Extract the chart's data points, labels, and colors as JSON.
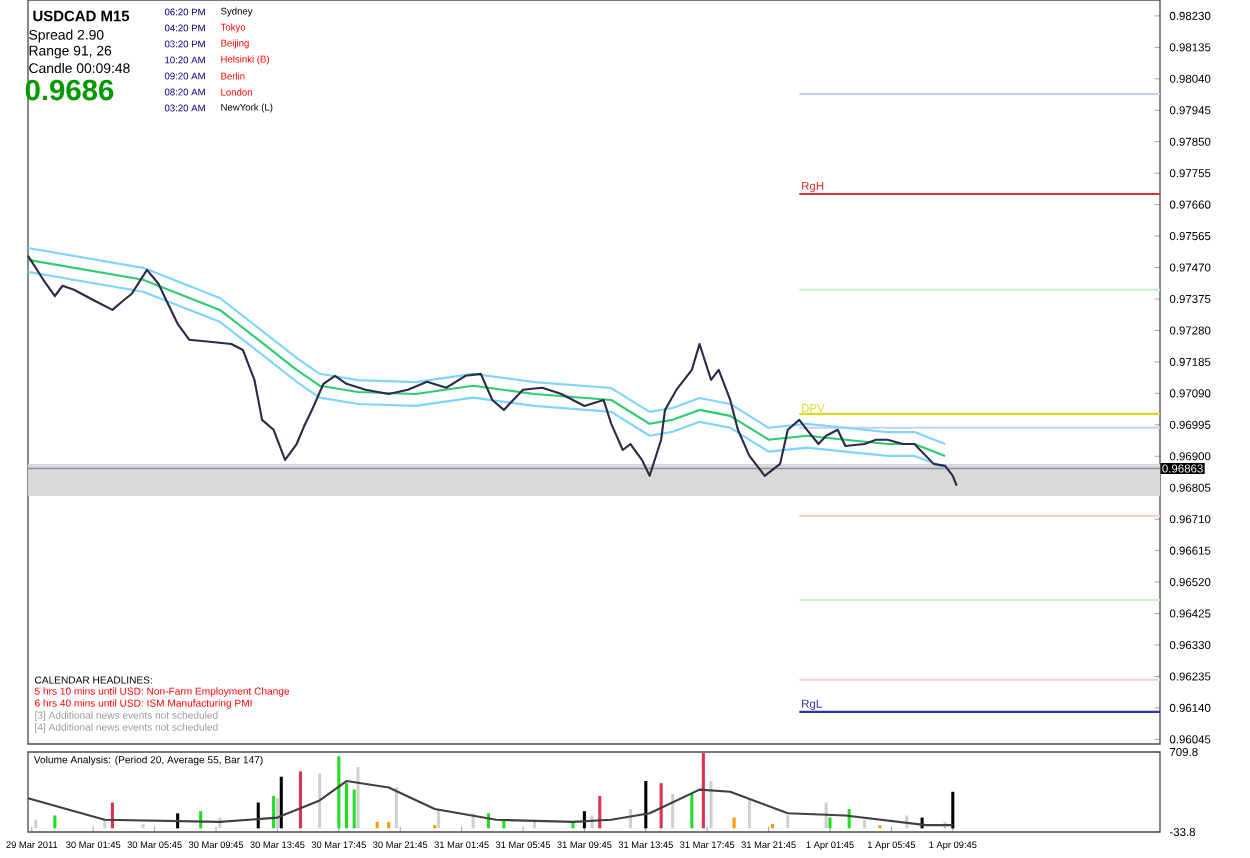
{
  "chart_data": [
    {
      "type": "line",
      "title": "USDCAD  M15",
      "xlim": [
        "2011-03-29T21:30",
        "2011-04-01T23:15"
      ],
      "ylim": [
        0.96031,
        0.98278
      ],
      "tick_labels": "y",
      "yticks": [
        {
          "value": 0.9823,
          "label": "0.98230"
        },
        0.98135,
        {
          "value": 0.9804,
          "label": "0.98040"
        },
        0.97945,
        {
          "value": 0.9785,
          "label": "0.97850"
        },
        0.97755,
        {
          "value": 0.9766,
          "label": "0.97660"
        },
        0.97565,
        {
          "value": 0.9747,
          "label": "0.97470"
        },
        0.97375,
        {
          "value": 0.9728,
          "label": "0.97280"
        },
        0.97185,
        {
          "value": 0.9709,
          "label": "0.97090"
        },
        0.96995,
        {
          "value": 0.969,
          "label": "0.96900"
        },
        0.96805,
        {
          "value": 0.9671,
          "label": "0.96710"
        },
        0.96615,
        {
          "value": 0.9652,
          "label": "0.96520"
        },
        0.96425,
        {
          "value": 0.9633,
          "label": "0.96330"
        },
        0.96235,
        {
          "value": 0.9614,
          "label": "0.96140"
        },
        0.96045
      ],
      "bands": [
        {
          "axis": "y",
          "from": 0.9678,
          "to": 0.96877,
          "color": "#d9d9d9"
        }
      ],
      "ref_lines": [
        {
          "axis": "y",
          "value": 0.96863,
          "label": "0.96863",
          "color": "#9090a0"
        }
      ],
      "series": [
        {
          "color": "#c8d0f0",
          "x": [
            "2011-03-31T23:45",
            "2011-04-01T23:15"
          ],
          "values": [
            0.97994,
            0.97994
          ]
        },
        {
          "color": "#c8f0c8",
          "x": [
            "2011-03-31T23:45",
            "2011-04-01T23:15"
          ],
          "values": [
            0.97403,
            0.97403
          ]
        },
        {
          "color": "#c8d0f0",
          "x": [
            "2011-03-31T23:45",
            "2011-04-01T23:15"
          ],
          "values": [
            0.96986,
            0.96986
          ]
        },
        {
          "color": "#f4d0d0",
          "x": [
            "2011-03-31T23:45",
            "2011-04-01T23:15"
          ],
          "values": [
            0.9672,
            0.9672
          ]
        },
        {
          "color": "#c8f0c8",
          "x": [
            "2011-03-31T23:45",
            "2011-04-01T23:15"
          ],
          "values": [
            0.96466,
            0.96466
          ]
        },
        {
          "color": "#f4d0d0",
          "x": [
            "2011-03-31T23:45",
            "2011-04-01T23:15"
          ],
          "values": [
            0.96225,
            0.96225
          ]
        },
        {
          "name": "RgH",
          "color": "#e03030",
          "x": [
            "2011-03-31T23:45",
            "2011-04-01T23:15"
          ],
          "values": [
            0.97692,
            0.97692
          ]
        },
        {
          "name": "DPV",
          "color": "#e0d820",
          "x": [
            "2011-03-31T23:45",
            "2011-04-01T23:15"
          ],
          "values": [
            0.97028,
            0.97028
          ]
        },
        {
          "name": "RgL",
          "color": "#3030b0",
          "x": [
            "2011-03-31T23:45",
            "2011-04-01T23:15"
          ],
          "values": [
            0.96128,
            0.96128
          ]
        },
        {
          "color": "#7fd4ff",
          "x": [
            "2011-03-29T21:30",
            "2011-03-30T05:00",
            "2011-03-30T10:00",
            "2011-03-30T12:30",
            "2011-03-30T15:00",
            "2011-03-30T16:30",
            "2011-03-30T19:00",
            "2011-03-30T22:45",
            "2011-03-31T02:30",
            "2011-03-31T06:30",
            "2011-03-31T11:30",
            "2011-03-31T14:00",
            "2011-03-31T15:30",
            "2011-03-31T17:15",
            "2011-03-31T19:15",
            "2011-03-31T21:45",
            "2011-04-01T00:15",
            "2011-04-01T02:45",
            "2011-04-01T05:30",
            "2011-04-01T07:15",
            "2011-04-01T09:15"
          ],
          "values": [
            0.97529,
            0.97469,
            0.97378,
            0.97288,
            0.97197,
            0.97149,
            0.9713,
            0.97124,
            0.97149,
            0.97124,
            0.97106,
            0.97034,
            0.97046,
            0.97076,
            0.97058,
            0.96986,
            0.96998,
            0.96986,
            0.96973,
            0.96973,
            0.96937
          ]
        },
        {
          "color": "#7fd4ff",
          "x": [
            "2011-03-29T21:30",
            "2011-03-30T05:00",
            "2011-03-30T10:00",
            "2011-03-30T12:30",
            "2011-03-30T15:00",
            "2011-03-30T16:30",
            "2011-03-30T19:00",
            "2011-03-30T22:45",
            "2011-03-31T02:30",
            "2011-03-31T06:30",
            "2011-03-31T11:30",
            "2011-03-31T14:00",
            "2011-03-31T15:30",
            "2011-03-31T17:15",
            "2011-03-31T19:15",
            "2011-03-31T21:45",
            "2011-04-01T00:15",
            "2011-04-01T02:45",
            "2011-04-01T05:30",
            "2011-04-01T07:15",
            "2011-04-01T09:15"
          ],
          "values": [
            0.97457,
            0.97397,
            0.97306,
            0.97216,
            0.97125,
            0.97077,
            0.97058,
            0.97052,
            0.97077,
            0.97052,
            0.97034,
            0.96962,
            0.96974,
            0.97004,
            0.96986,
            0.96914,
            0.96926,
            0.96914,
            0.96901,
            0.96901,
            0.96865
          ]
        },
        {
          "color": "#2ecc71",
          "x": [
            "2011-03-29T21:30",
            "2011-03-30T05:00",
            "2011-03-30T10:00",
            "2011-03-30T12:30",
            "2011-03-30T15:00",
            "2011-03-30T16:30",
            "2011-03-30T19:00",
            "2011-03-30T22:45",
            "2011-03-31T02:30",
            "2011-03-31T06:30",
            "2011-03-31T11:30",
            "2011-03-31T14:00",
            "2011-03-31T15:30",
            "2011-03-31T17:15",
            "2011-03-31T19:15",
            "2011-03-31T21:45",
            "2011-04-01T00:15",
            "2011-04-01T02:45",
            "2011-04-01T05:30",
            "2011-04-01T07:15",
            "2011-04-01T09:15"
          ],
          "values": [
            0.97493,
            0.97433,
            0.97342,
            0.97252,
            0.97161,
            0.97113,
            0.97094,
            0.97088,
            0.97113,
            0.97088,
            0.9707,
            0.96998,
            0.9701,
            0.9704,
            0.97022,
            0.9695,
            0.96962,
            0.9695,
            0.96937,
            0.96937,
            0.96901
          ]
        },
        {
          "color": "#2b2b4a",
          "x": [
            "2011-03-29T21:30",
            "2011-03-29T22:30",
            "2011-03-29T23:15",
            "2011-03-29T23:45",
            "2011-03-30T00:30",
            "2011-03-30T01:45",
            "2011-03-30T03:00",
            "2011-03-30T03:45",
            "2011-03-30T04:15",
            "2011-03-30T05:15",
            "2011-03-30T06:00",
            "2011-03-30T06:30",
            "2011-03-30T07:15",
            "2011-03-30T08:00",
            "2011-03-30T09:30",
            "2011-03-30T10:45",
            "2011-03-30T11:30",
            "2011-03-30T12:15",
            "2011-03-30T12:45",
            "2011-03-30T13:30",
            "2011-03-30T14:15",
            "2011-03-30T15:00",
            "2011-03-30T15:30",
            "2011-03-30T16:00",
            "2011-03-30T16:45",
            "2011-03-30T17:30",
            "2011-03-30T18:15",
            "2011-03-30T19:30",
            "2011-03-30T21:00",
            "2011-03-30T22:15",
            "2011-03-30T23:30",
            "2011-03-31T00:45",
            "2011-03-31T02:00",
            "2011-03-31T03:00",
            "2011-03-31T03:45",
            "2011-03-31T04:30",
            "2011-03-31T05:45",
            "2011-03-31T07:00",
            "2011-03-31T08:15",
            "2011-03-31T09:45",
            "2011-03-31T11:00",
            "2011-03-31T11:30",
            "2011-03-31T12:15",
            "2011-03-31T12:45",
            "2011-03-31T13:30",
            "2011-03-31T14:00",
            "2011-03-31T14:45",
            "2011-03-31T15:00",
            "2011-03-31T15:45",
            "2011-03-31T16:45",
            "2011-03-31T17:15",
            "2011-03-31T18:00",
            "2011-03-31T18:30",
            "2011-03-31T19:15",
            "2011-03-31T19:45",
            "2011-03-31T20:30",
            "2011-03-31T21:30",
            "2011-03-31T22:30",
            "2011-03-31T23:00",
            "2011-03-31T23:45",
            "2011-04-01T00:15",
            "2011-04-01T01:00",
            "2011-04-01T01:30",
            "2011-04-01T02:15",
            "2011-04-01T02:45",
            "2011-04-01T04:00",
            "2011-04-01T04:45",
            "2011-04-01T05:30",
            "2011-04-01T06:30",
            "2011-04-01T07:15",
            "2011-04-01T08:00",
            "2011-04-01T08:30",
            "2011-04-01T09:15",
            "2011-04-01T09:45",
            "2011-04-01T10:00"
          ],
          "values": [
            0.97505,
            0.97433,
            0.97384,
            0.97415,
            0.97403,
            0.97372,
            0.97342,
            0.97372,
            0.9739,
            0.97463,
            0.97421,
            0.97372,
            0.973,
            0.97252,
            0.97245,
            0.97239,
            0.97221,
            0.97131,
            0.9701,
            0.9698,
            0.96889,
            0.96937,
            0.96992,
            0.9704,
            0.97119,
            0.97143,
            0.97119,
            0.97101,
            0.97088,
            0.97101,
            0.97125,
            0.97107,
            0.97143,
            0.97149,
            0.9707,
            0.9704,
            0.97101,
            0.97107,
            0.97088,
            0.97052,
            0.9707,
            0.96998,
            0.96919,
            0.96937,
            0.96889,
            0.96841,
            0.9695,
            0.9704,
            0.97101,
            0.97161,
            0.97239,
            0.97131,
            0.97161,
            0.9707,
            0.9698,
            0.96901,
            0.96841,
            0.96877,
            0.9698,
            0.9701,
            0.9698,
            0.96937,
            0.96962,
            0.9698,
            0.96931,
            0.96937,
            0.9695,
            0.9695,
            0.96937,
            0.96937,
            0.96901,
            0.96877,
            0.96871,
            0.96841,
            0.96811
          ]
        }
      ],
      "annotations": [
        "Spread  2.90",
        "Range  91, 26",
        "Candle  00:09:48",
        "0.9686",
        "06:20 PM",
        "04:20 PM",
        "03:20 PM",
        "10:20 AM",
        "09:20 AM",
        "08:20 AM",
        "03:20 AM",
        "Sydney",
        "Tokyo",
        "Beijing",
        "Helsinki (B)",
        "Berlin",
        "London",
        "NewYork (L)",
        "CALENDAR HEADLINES:",
        "5 hrs 10 mins until USD: Non-Farm Employment Change",
        "6 hrs 40 mins until USD: ISM Manufacturing PMI",
        "[3] Additional news events not scheduled",
        "[4] Additional news events not scheduled"
      ]
    },
    {
      "type": "bar",
      "title": "Volume Analysis: (Period 20, Average 55, Bar 147)",
      "xlim": [
        "2011-03-29T21:30",
        "2011-04-01T23:15"
      ],
      "ylim": [
        -33.8,
        709.8
      ],
      "yticks": [
        709.8,
        -33.8
      ],
      "xticks": [
        {
          "value": "2011-03-29T21:45",
          "label": "29 Mar 2011"
        },
        {
          "value": "2011-03-30T01:45",
          "label": "30 Mar 01:45"
        },
        {
          "value": "2011-03-30T05:45",
          "label": "30 Mar 05:45"
        },
        {
          "value": "2011-03-30T09:45",
          "label": "30 Mar 09:45"
        },
        {
          "value": "2011-03-30T13:45",
          "label": "30 Mar 13:45"
        },
        {
          "value": "2011-03-30T17:45",
          "label": "30 Mar 17:45"
        },
        {
          "value": "2011-03-30T21:45",
          "label": "30 Mar 21:45"
        },
        {
          "value": "2011-03-31T01:45",
          "label": "31 Mar 01:45"
        },
        {
          "value": "2011-03-31T05:45",
          "label": "31 Mar 05:45"
        },
        {
          "value": "2011-03-31T09:45",
          "label": "31 Mar 09:45"
        },
        {
          "value": "2011-03-31T13:45",
          "label": "31 Mar 13:45"
        },
        {
          "value": "2011-03-31T17:45",
          "label": "31 Mar 17:45"
        },
        {
          "value": "2011-03-31T21:45",
          "label": "31 Mar 21:45"
        },
        {
          "value": "2011-04-01T01:45",
          "label": "1 Apr 01:45"
        },
        {
          "value": "2011-04-01T05:45",
          "label": "1 Apr 05:45"
        },
        {
          "value": "2011-04-01T09:45",
          "label": "1 Apr 09:45"
        }
      ],
      "series": [
        {
          "color": "#d0d0d0",
          "x": [
            "2011-03-29T22:00",
            "2011-03-30T02:30",
            "2011-03-30T05:00",
            "2011-03-30T10:00",
            "2011-03-30T13:45",
            "2011-03-30T16:30",
            "2011-03-30T19:00",
            "2011-03-30T21:30",
            "2011-03-31T00:15",
            "2011-03-31T02:30",
            "2011-03-31T06:30",
            "2011-03-31T10:15",
            "2011-03-31T12:45",
            "2011-03-31T15:30",
            "2011-03-31T18:00",
            "2011-03-31T20:30",
            "2011-03-31T23:00",
            "2011-04-01T01:30",
            "2011-04-01T04:00",
            "2011-04-01T06:45",
            "2011-04-01T09:15"
          ],
          "values": [
            80,
            80,
            40,
            100,
            280,
            510,
            570,
            380,
            180,
            140,
            80,
            120,
            180,
            320,
            440,
            280,
            120,
            240,
            80,
            120,
            60
          ]
        },
        {
          "color": "#22dd22",
          "x": [
            "2011-03-29T23:15",
            "2011-03-30T08:45",
            "2011-03-30T13:30",
            "2011-03-30T17:45",
            "2011-03-30T18:15",
            "2011-03-30T18:45",
            "2011-03-31T03:30",
            "2011-03-31T04:30",
            "2011-03-31T09:00",
            "2011-03-31T16:45",
            "2011-04-01T01:45",
            "2011-04-01T03:00"
          ],
          "values": [
            120,
            160,
            300,
            670,
            420,
            360,
            140,
            80,
            60,
            320,
            100,
            180
          ]
        },
        {
          "color": "#e03050",
          "x": [
            "2011-03-30T03:00",
            "2011-03-30T15:15",
            "2011-03-31T10:45",
            "2011-03-31T14:45",
            "2011-03-31T17:30"
          ],
          "values": [
            240,
            530,
            300,
            420,
            700
          ]
        },
        {
          "color": "#000000",
          "x": [
            "2011-03-30T07:15",
            "2011-03-30T12:30",
            "2011-03-30T14:00",
            "2011-03-31T09:45",
            "2011-03-31T13:45",
            "2011-04-01T07:45",
            "2011-04-01T09:45"
          ],
          "values": [
            140,
            240,
            480,
            160,
            440,
            100,
            340
          ]
        },
        {
          "color": "#ff9900",
          "x": [
            "2011-03-30T20:15",
            "2011-03-30T21:00",
            "2011-03-31T00:00",
            "2011-03-31T19:30",
            "2011-03-31T22:00",
            "2011-04-01T05:00"
          ],
          "values": [
            60,
            60,
            30,
            100,
            40,
            30
          ]
        },
        {
          "type": "line",
          "color": "#404040",
          "x": [
            "2011-03-29T21:30",
            "2011-03-30T02:30",
            "2011-03-30T10:00",
            "2011-03-30T13:45",
            "2011-03-30T16:30",
            "2011-03-30T18:15",
            "2011-03-30T21:00",
            "2011-03-31T00:00",
            "2011-03-31T04:00",
            "2011-03-31T09:00",
            "2011-03-31T11:30",
            "2011-03-31T14:00",
            "2011-03-31T17:15",
            "2011-03-31T19:15",
            "2011-03-31T23:00",
            "2011-04-01T02:45",
            "2011-04-01T08:00",
            "2011-04-01T09:45"
          ],
          "values": [
            280,
            80,
            60,
            100,
            260,
            440,
            380,
            180,
            80,
            60,
            80,
            140,
            360,
            340,
            140,
            120,
            30,
            30
          ]
        }
      ]
    }
  ]
}
